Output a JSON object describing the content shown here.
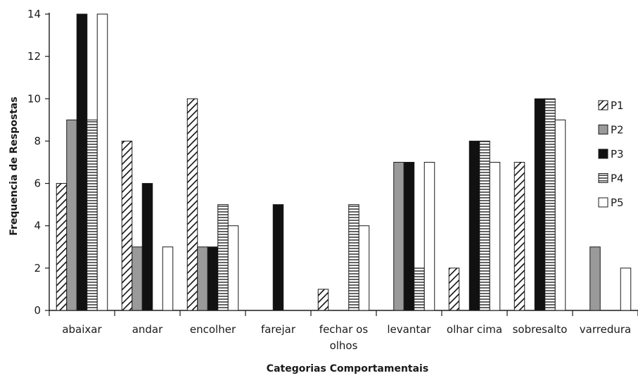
{
  "chart_data": {
    "type": "bar",
    "xlabel": "Categorias Comportamentais",
    "ylabel": "Frequencia de Respostas",
    "ylim": [
      0,
      14
    ],
    "yticks": [
      0,
      2,
      4,
      6,
      8,
      10,
      12,
      14
    ],
    "grid": false,
    "legend_position": "right",
    "categories": [
      [
        "abaixar"
      ],
      [
        "andar"
      ],
      [
        "encolher"
      ],
      [
        "farejar"
      ],
      [
        "fechar os",
        "olhos"
      ],
      [
        "levantar"
      ],
      [
        "olhar cima"
      ],
      [
        "sobresalto"
      ],
      [
        "varredura"
      ]
    ],
    "series": [
      {
        "name": "P1",
        "pattern": "diagonal",
        "values": [
          6,
          8,
          10,
          0,
          1,
          0,
          2,
          7,
          0
        ]
      },
      {
        "name": "P2",
        "pattern": "gray",
        "values": [
          9,
          3,
          3,
          0,
          0,
          7,
          0,
          0,
          3
        ]
      },
      {
        "name": "P3",
        "pattern": "black",
        "values": [
          14,
          6,
          3,
          5,
          0,
          7,
          8,
          10,
          0
        ]
      },
      {
        "name": "P4",
        "pattern": "horizontal",
        "values": [
          9,
          0,
          5,
          0,
          5,
          2,
          8,
          10,
          0
        ]
      },
      {
        "name": "P5",
        "pattern": "white",
        "values": [
          14,
          3,
          4,
          0,
          4,
          7,
          7,
          9,
          2
        ]
      }
    ]
  },
  "colors": {
    "axis": "#1a1a1a",
    "gray_fill": "#9a9a9a",
    "black_fill": "#111111",
    "white_fill": "#ffffff"
  }
}
